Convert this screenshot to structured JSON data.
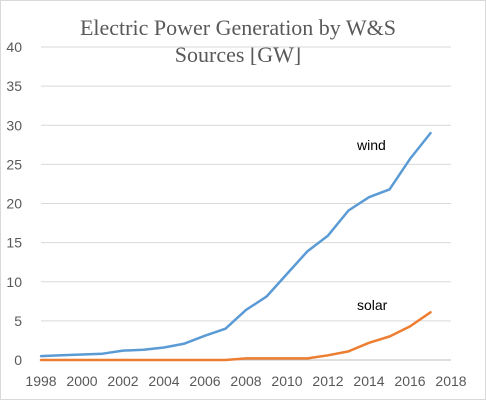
{
  "chart_data": {
    "type": "line",
    "title_lines": [
      "Electric Power Generation by W&S",
      "Sources [GW]"
    ],
    "xlabel": "",
    "ylabel": "",
    "xlim": [
      1998,
      2018
    ],
    "ylim": [
      0,
      40
    ],
    "x_ticks": [
      1998,
      2000,
      2002,
      2004,
      2006,
      2008,
      2010,
      2012,
      2014,
      2016,
      2018
    ],
    "y_ticks": [
      0,
      5,
      10,
      15,
      20,
      25,
      30,
      35,
      40
    ],
    "grid": "horizontal",
    "legend": "none",
    "x": [
      1998,
      1999,
      2000,
      2001,
      2002,
      2003,
      2004,
      2005,
      2006,
      2007,
      2008,
      2009,
      2010,
      2011,
      2012,
      2013,
      2014,
      2015,
      2016,
      2017
    ],
    "series": [
      {
        "name": "wind",
        "color": "#5b9bd5",
        "values": [
          0.5,
          0.6,
          0.7,
          0.8,
          1.2,
          1.3,
          1.6,
          2.1,
          3.1,
          4.0,
          6.4,
          8.1,
          11.0,
          13.9,
          15.9,
          19.1,
          20.8,
          21.8,
          25.7,
          29.0
        ]
      },
      {
        "name": "solar",
        "color": "#ed7d31",
        "values": [
          0.0,
          0.0,
          0.0,
          0.0,
          0.0,
          0.0,
          0.0,
          0.0,
          0.0,
          0.0,
          0.2,
          0.2,
          0.2,
          0.2,
          0.6,
          1.1,
          2.2,
          3.0,
          4.3,
          6.1
        ]
      }
    ]
  }
}
